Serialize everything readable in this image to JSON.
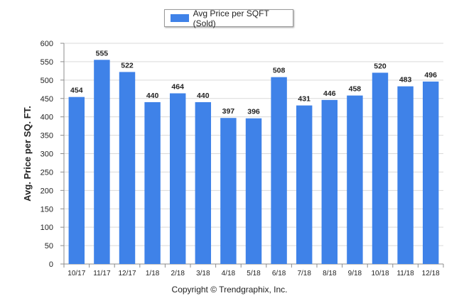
{
  "legend": {
    "label": "Avg Price per SQFT (Sold)"
  },
  "footer": {
    "copyright": "Copyright © Trendgraphix, Inc."
  },
  "colors": {
    "bar": "#3f82e8",
    "grid": "#d9d9d9",
    "axis": "#8c8c8c",
    "text": "#222222"
  },
  "chart_data": {
    "type": "bar",
    "categories": [
      "10/17",
      "11/17",
      "12/17",
      "1/18",
      "2/18",
      "3/18",
      "4/18",
      "5/18",
      "6/18",
      "7/18",
      "8/18",
      "9/18",
      "10/18",
      "11/18",
      "12/18"
    ],
    "series": [
      {
        "name": "Avg Price per SQFT (Sold)",
        "values": [
          454,
          555,
          522,
          440,
          464,
          440,
          397,
          396,
          508,
          431,
          446,
          458,
          520,
          483,
          496
        ]
      }
    ],
    "ylabel": "Avg. Price per SQ. FT.",
    "xlabel": "",
    "ylim": [
      0,
      600
    ],
    "yticks": [
      0,
      50,
      100,
      150,
      200,
      250,
      300,
      350,
      400,
      450,
      500,
      550,
      600
    ],
    "grid": true,
    "data_labels": true,
    "legend_position": "top-center"
  }
}
